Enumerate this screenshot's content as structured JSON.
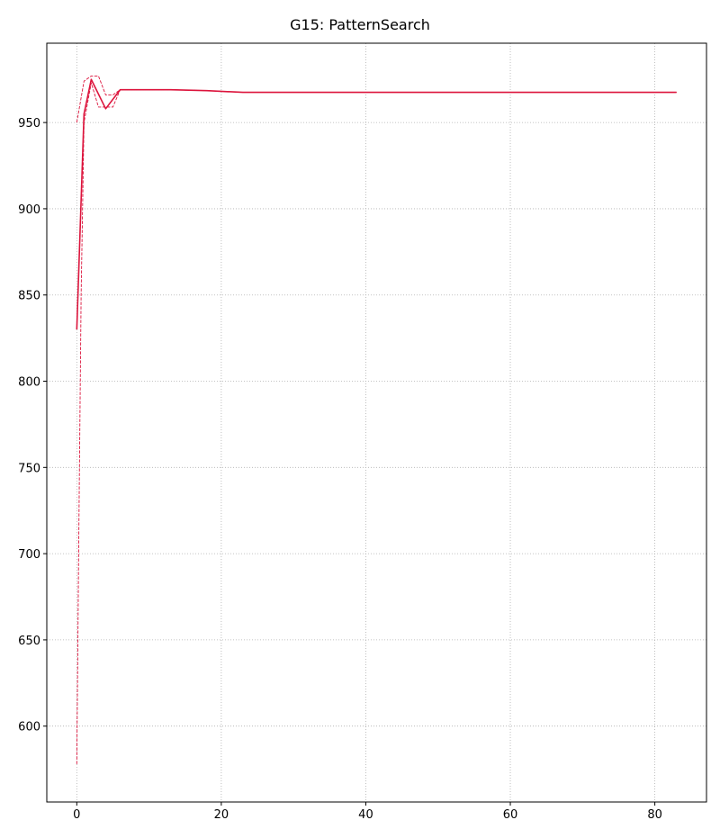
{
  "chart_data": {
    "type": "line",
    "title": "G15: PatternSearch",
    "xlabel": "",
    "ylabel": "",
    "xlim": [
      -4.15,
      87.15
    ],
    "ylim": [
      556,
      996
    ],
    "xticks": [
      0,
      20,
      40,
      60,
      80
    ],
    "yticks": [
      600,
      650,
      700,
      750,
      800,
      850,
      900,
      950
    ],
    "grid": true,
    "legend": "none",
    "colors": {
      "series": "#dc143c",
      "grid": "#b0b0b0"
    },
    "series": [
      {
        "style": "solid",
        "x": [
          0,
          1,
          2,
          4,
          6,
          8,
          13,
          18,
          23,
          30,
          40,
          50,
          60,
          70,
          83
        ],
        "y": [
          830,
          955,
          975,
          958,
          969,
          969,
          969,
          968.5,
          967.5,
          967.5,
          967.5,
          967.5,
          967.5,
          967.5,
          967.5
        ]
      },
      {
        "style": "dashed-upper",
        "x": [
          0,
          1,
          2,
          3,
          4,
          5,
          6,
          8,
          13,
          18,
          23,
          30,
          40,
          60,
          83
        ],
        "y": [
          950,
          974,
          977,
          977,
          966,
          966,
          969,
          969,
          969,
          968.5,
          967.5,
          967.5,
          967.5,
          967.5,
          967.5
        ]
      },
      {
        "style": "dashed-lower",
        "x": [
          0,
          0.3,
          0.6,
          1,
          2,
          3,
          4,
          5,
          6,
          8,
          13,
          18,
          23,
          30,
          40,
          60,
          83
        ],
        "y": [
          578,
          720,
          850,
          950,
          973,
          959,
          959,
          959,
          969,
          969,
          969,
          968.5,
          967.5,
          967.5,
          967.5,
          967.5,
          967.5
        ]
      }
    ]
  }
}
